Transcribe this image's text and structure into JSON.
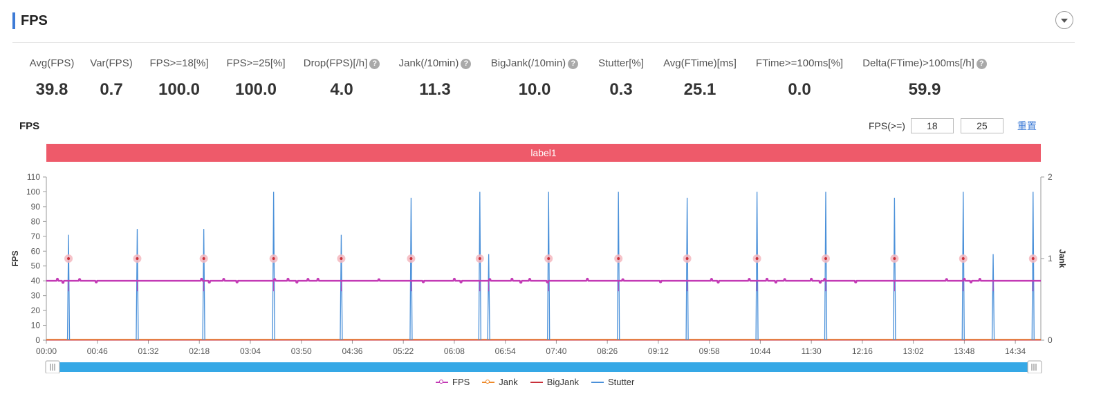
{
  "header": {
    "title": "FPS"
  },
  "metrics": [
    {
      "label": "Avg(FPS)",
      "value": "39.8",
      "help": false
    },
    {
      "label": "Var(FPS)",
      "value": "0.7",
      "help": false
    },
    {
      "label": "FPS>=18[%]",
      "value": "100.0",
      "help": false
    },
    {
      "label": "FPS>=25[%]",
      "value": "100.0",
      "help": false
    },
    {
      "label": "Drop(FPS)[/h]",
      "value": "4.0",
      "help": true
    },
    {
      "label": "Jank(/10min)",
      "value": "11.3",
      "help": true
    },
    {
      "label": "BigJank(/10min)",
      "value": "10.0",
      "help": true
    },
    {
      "label": "Stutter[%]",
      "value": "0.3",
      "help": false
    },
    {
      "label": "Avg(FTime)[ms]",
      "value": "25.1",
      "help": false
    },
    {
      "label": "FTime>=100ms[%]",
      "value": "0.0",
      "help": false
    },
    {
      "label": "Delta(FTime)>100ms[/h]",
      "value": "59.9",
      "help": true
    }
  ],
  "chart_section": {
    "title": "FPS",
    "filter_label": "FPS(>=)",
    "threshold_low": "18",
    "threshold_high": "25",
    "reset_label": "重置",
    "band_label": "label1"
  },
  "colors": {
    "fps": "#c33ab5",
    "jank": "#ee8a2a",
    "bigjank": "#c8303a",
    "stutter": "#4a90d9",
    "marker": "#f4b8c0",
    "band": "#ee5a6a",
    "accent": "#3d7bd6",
    "slider": "#35a8e6"
  },
  "chart_data": {
    "type": "line",
    "ylabel": "FPS",
    "y2label": "Jank",
    "ylim": [
      0,
      110
    ],
    "y2lim": [
      0,
      2
    ],
    "yticks": [
      0,
      10,
      20,
      30,
      40,
      50,
      60,
      70,
      80,
      90,
      100,
      110
    ],
    "y2ticks": [
      0,
      1,
      2
    ],
    "xlim": [
      0,
      897
    ],
    "xticks": [
      {
        "t": 0,
        "label": "00:00"
      },
      {
        "t": 46,
        "label": "00:46"
      },
      {
        "t": 92,
        "label": "01:32"
      },
      {
        "t": 138,
        "label": "02:18"
      },
      {
        "t": 184,
        "label": "03:04"
      },
      {
        "t": 230,
        "label": "03:50"
      },
      {
        "t": 276,
        "label": "04:36"
      },
      {
        "t": 322,
        "label": "05:22"
      },
      {
        "t": 368,
        "label": "06:08"
      },
      {
        "t": 414,
        "label": "06:54"
      },
      {
        "t": 460,
        "label": "07:40"
      },
      {
        "t": 506,
        "label": "08:26"
      },
      {
        "t": 552,
        "label": "09:12"
      },
      {
        "t": 598,
        "label": "09:58"
      },
      {
        "t": 644,
        "label": "10:44"
      },
      {
        "t": 690,
        "label": "11:30"
      },
      {
        "t": 736,
        "label": "12:16"
      },
      {
        "t": 782,
        "label": "13:02"
      },
      {
        "t": 828,
        "label": "13:48"
      },
      {
        "t": 874,
        "label": "14:34"
      }
    ],
    "fps_baseline": 40,
    "fps_small_dips": [
      [
        10,
        41
      ],
      [
        15,
        39
      ],
      [
        30,
        40.8
      ],
      [
        45,
        39.3
      ],
      [
        140,
        41
      ],
      [
        147,
        39.2
      ],
      [
        160,
        40.9
      ],
      [
        172,
        39.3
      ],
      [
        206,
        40.8
      ],
      [
        218,
        41
      ],
      [
        226,
        39.2
      ],
      [
        236,
        40.9
      ],
      [
        245,
        41
      ],
      [
        300,
        40.7
      ],
      [
        340,
        39.4
      ],
      [
        368,
        41
      ],
      [
        374,
        39.3
      ],
      [
        400,
        40.8
      ],
      [
        420,
        41
      ],
      [
        428,
        39.1
      ],
      [
        436,
        40.9
      ],
      [
        452,
        39.3
      ],
      [
        488,
        41
      ],
      [
        520,
        40.7
      ],
      [
        554,
        39.4
      ],
      [
        600,
        40.9
      ],
      [
        606,
        39.2
      ],
      [
        634,
        40.9
      ],
      [
        650,
        41
      ],
      [
        658,
        39.2
      ],
      [
        666,
        40.8
      ],
      [
        690,
        41
      ],
      [
        698,
        39.1
      ],
      [
        702,
        40.9
      ],
      [
        730,
        39.3
      ],
      [
        812,
        40.8
      ],
      [
        828,
        41
      ],
      [
        834,
        39.3
      ],
      [
        842,
        40.9
      ]
    ],
    "stutter_spikes": [
      {
        "t": 20,
        "peak": 71
      },
      {
        "t": 82,
        "peak": 75
      },
      {
        "t": 142,
        "peak": 75
      },
      {
        "t": 205,
        "peak": 100
      },
      {
        "t": 266,
        "peak": 71
      },
      {
        "t": 329,
        "peak": 96
      },
      {
        "t": 391,
        "peak": 100
      },
      {
        "t": 399,
        "peak": 58
      },
      {
        "t": 453,
        "peak": 100
      },
      {
        "t": 516,
        "peak": 100
      },
      {
        "t": 578,
        "peak": 96
      },
      {
        "t": 641,
        "peak": 100
      },
      {
        "t": 703,
        "peak": 100
      },
      {
        "t": 765,
        "peak": 96
      },
      {
        "t": 827,
        "peak": 100
      },
      {
        "t": 854,
        "peak": 58
      },
      {
        "t": 890,
        "peak": 100
      }
    ],
    "jank_markers": [
      20,
      82,
      142,
      205,
      266,
      329,
      391,
      453,
      516,
      578,
      641,
      703,
      765,
      827,
      890
    ],
    "jank_values": [
      0
    ],
    "bigjank_values": [
      0
    ],
    "series": [
      {
        "name": "FPS"
      },
      {
        "name": "Jank"
      },
      {
        "name": "BigJank"
      },
      {
        "name": "Stutter"
      }
    ],
    "legend_position": "bottom-center"
  }
}
